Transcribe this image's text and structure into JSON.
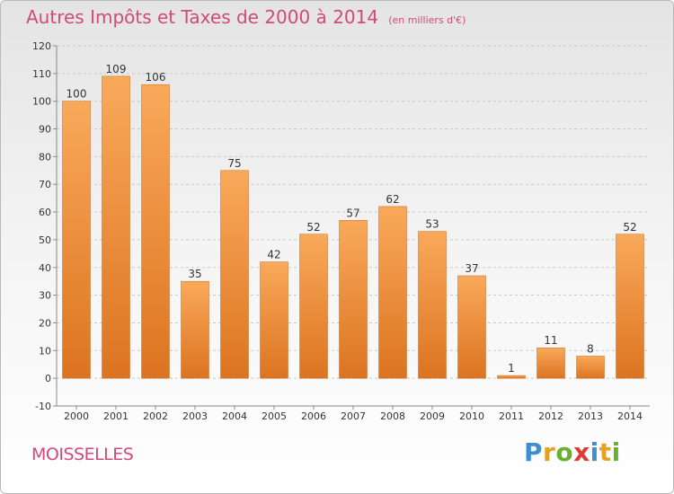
{
  "title": "Autres Impôts et Taxes de 2000 à 2014",
  "unit_label": "(en milliers d'€)",
  "city": "MOISSELLES",
  "logo": {
    "letters": [
      "P",
      "r",
      "o",
      "x",
      "i",
      "t",
      "i"
    ],
    "colors": [
      "#3a8fd0",
      "#e8a020",
      "#6ab030",
      "#e03a3a",
      "#3a8fd0",
      "#e8a020",
      "#6ab030"
    ]
  },
  "colors": {
    "title": "#d04a7a",
    "bar_light": "#f9a95a",
    "bar_dark": "#dc7421",
    "grid": "#c8c8c8",
    "axis": "#888888",
    "text": "#333333"
  },
  "chart_data": {
    "type": "bar",
    "categories": [
      "2000",
      "2001",
      "2002",
      "2003",
      "2004",
      "2005",
      "2006",
      "2007",
      "2008",
      "2009",
      "2010",
      "2011",
      "2012",
      "2013",
      "2014"
    ],
    "values": [
      100,
      109,
      106,
      35,
      75,
      42,
      52,
      57,
      62,
      53,
      37,
      1,
      11,
      8,
      52
    ],
    "data_labels": [
      "100",
      "109",
      "106",
      "35",
      "75",
      "42",
      "52",
      "57",
      "62",
      "53",
      "37",
      "1",
      "11",
      "8",
      "52"
    ],
    "ylim": [
      -10,
      120
    ],
    "yticks": [
      -10,
      0,
      10,
      20,
      30,
      40,
      50,
      60,
      70,
      80,
      90,
      100,
      110,
      120
    ],
    "ytick_labels": [
      "-10",
      "0",
      "10",
      "20",
      "30",
      "40",
      "50",
      "60",
      "70",
      "80",
      "90",
      "100",
      "110",
      "120"
    ],
    "grid": true,
    "title": "Autres Impôts et Taxes de 2000 à 2014",
    "xlabel": "",
    "ylabel": ""
  }
}
